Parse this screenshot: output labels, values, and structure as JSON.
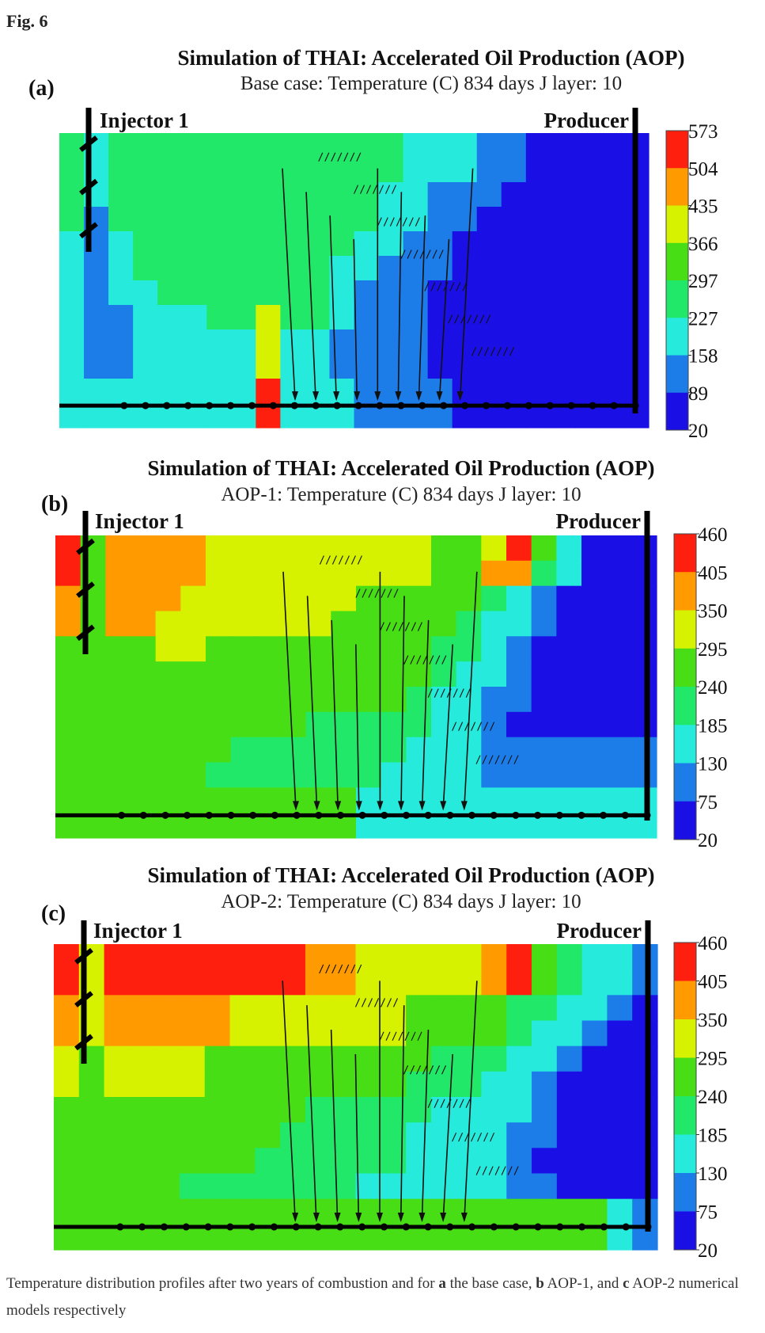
{
  "figure_label": "Fig. 6",
  "caption": {
    "prefix": "Temperature distribution profiles after two years of combustion and for ",
    "a_key": "a",
    "a_text": " the base case, ",
    "b_key": "b",
    "b_text": " AOP-1, and ",
    "c_key": "c",
    "c_text": " AOP-2 numerical models respectively"
  },
  "colors": {
    "scale": [
      "#1a10e6",
      "#1d7de8",
      "#26eadc",
      "#22e86a",
      "#48de16",
      "#d6f200",
      "#ff9a00",
      "#ff1f0e"
    ],
    "well": "#000000"
  },
  "chart_data": [
    {
      "type": "heatmap",
      "panel": "(a)",
      "title": "Simulation of THAI: Accelerated Oil Production (AOP)",
      "subtitle_lead": "Base case:",
      "subtitle_rest": "Temperature (C)    834 days    J layer: 10",
      "injector_label": "Injector 1",
      "producer_label": "Producer",
      "colorbar_ticks": [
        573,
        504,
        435,
        366,
        297,
        227,
        158,
        89,
        20
      ],
      "grid": {
        "cols": 24,
        "rows": 12,
        "cells": [
          [
            3,
            2,
            3,
            3,
            3,
            3,
            3,
            3,
            3,
            3,
            3,
            3,
            3,
            3,
            2,
            2,
            2,
            1,
            1,
            0,
            0,
            0,
            0,
            0
          ],
          [
            3,
            2,
            3,
            3,
            3,
            3,
            3,
            3,
            3,
            3,
            3,
            3,
            3,
            3,
            2,
            2,
            2,
            1,
            1,
            0,
            0,
            0,
            0,
            0
          ],
          [
            3,
            2,
            3,
            3,
            3,
            3,
            3,
            3,
            3,
            3,
            3,
            3,
            3,
            2,
            2,
            1,
            1,
            1,
            0,
            0,
            0,
            0,
            0,
            0
          ],
          [
            3,
            1,
            3,
            3,
            3,
            3,
            3,
            3,
            3,
            3,
            3,
            3,
            3,
            2,
            2,
            1,
            1,
            0,
            0,
            0,
            0,
            0,
            0,
            0
          ],
          [
            2,
            1,
            2,
            3,
            3,
            3,
            3,
            3,
            3,
            3,
            3,
            3,
            2,
            2,
            1,
            1,
            0,
            0,
            0,
            0,
            0,
            0,
            0,
            0
          ],
          [
            2,
            1,
            2,
            3,
            3,
            3,
            3,
            3,
            3,
            3,
            3,
            2,
            2,
            1,
            1,
            1,
            0,
            0,
            0,
            0,
            0,
            0,
            0,
            0
          ],
          [
            2,
            1,
            2,
            2,
            3,
            3,
            3,
            3,
            3,
            3,
            3,
            2,
            1,
            1,
            1,
            0,
            0,
            0,
            0,
            0,
            0,
            0,
            0,
            0
          ],
          [
            2,
            1,
            1,
            2,
            2,
            2,
            3,
            3,
            5,
            3,
            3,
            2,
            1,
            1,
            1,
            0,
            0,
            0,
            0,
            0,
            0,
            0,
            0,
            0
          ],
          [
            2,
            1,
            1,
            2,
            2,
            2,
            2,
            2,
            5,
            2,
            2,
            1,
            1,
            1,
            1,
            0,
            0,
            0,
            0,
            0,
            0,
            0,
            0,
            0
          ],
          [
            2,
            1,
            1,
            2,
            2,
            2,
            2,
            2,
            5,
            2,
            2,
            1,
            1,
            1,
            1,
            0,
            0,
            0,
            0,
            0,
            0,
            0,
            0,
            0
          ],
          [
            2,
            2,
            2,
            2,
            2,
            2,
            2,
            2,
            7,
            2,
            2,
            2,
            1,
            1,
            1,
            1,
            0,
            0,
            0,
            0,
            0,
            0,
            0,
            0
          ],
          [
            2,
            2,
            2,
            2,
            2,
            2,
            2,
            2,
            7,
            2,
            2,
            2,
            1,
            1,
            1,
            1,
            0,
            0,
            0,
            0,
            0,
            0,
            0,
            0
          ]
        ]
      }
    },
    {
      "type": "heatmap",
      "panel": "(b)",
      "title": "Simulation of THAI: Accelerated Oil Production (AOP)",
      "subtitle_lead": "AOP-1:",
      "subtitle_rest": "Temperature (C)    834 days    J layer: 10",
      "injector_label": "Injector 1",
      "producer_label": "Producer",
      "colorbar_ticks": [
        460,
        405,
        350,
        295,
        240,
        185,
        130,
        75,
        20
      ],
      "grid": {
        "cols": 24,
        "rows": 12,
        "cells": [
          [
            7,
            4,
            6,
            6,
            6,
            6,
            5,
            5,
            5,
            5,
            5,
            5,
            5,
            5,
            5,
            4,
            4,
            5,
            7,
            4,
            2,
            0,
            0,
            0
          ],
          [
            7,
            4,
            6,
            6,
            6,
            6,
            5,
            5,
            5,
            5,
            5,
            5,
            5,
            5,
            5,
            4,
            4,
            6,
            6,
            3,
            2,
            0,
            0,
            0
          ],
          [
            6,
            4,
            6,
            6,
            6,
            5,
            5,
            5,
            5,
            5,
            5,
            5,
            4,
            4,
            4,
            4,
            4,
            3,
            2,
            1,
            0,
            0,
            0,
            0
          ],
          [
            6,
            4,
            6,
            6,
            5,
            5,
            5,
            5,
            5,
            5,
            5,
            4,
            4,
            4,
            4,
            4,
            3,
            2,
            2,
            1,
            0,
            0,
            0,
            0
          ],
          [
            4,
            4,
            4,
            4,
            5,
            5,
            4,
            4,
            4,
            4,
            4,
            4,
            4,
            4,
            4,
            3,
            3,
            2,
            1,
            0,
            0,
            0,
            0,
            0
          ],
          [
            4,
            4,
            4,
            4,
            4,
            4,
            4,
            4,
            4,
            4,
            4,
            4,
            4,
            4,
            4,
            3,
            2,
            2,
            1,
            0,
            0,
            0,
            0,
            0
          ],
          [
            4,
            4,
            4,
            4,
            4,
            4,
            4,
            4,
            4,
            4,
            4,
            4,
            4,
            4,
            3,
            2,
            2,
            1,
            1,
            0,
            0,
            0,
            0,
            0
          ],
          [
            4,
            4,
            4,
            4,
            4,
            4,
            4,
            4,
            4,
            4,
            3,
            3,
            3,
            3,
            3,
            2,
            2,
            1,
            0,
            0,
            0,
            0,
            0,
            0
          ],
          [
            4,
            4,
            4,
            4,
            4,
            4,
            4,
            3,
            3,
            3,
            3,
            3,
            3,
            3,
            2,
            2,
            2,
            1,
            1,
            1,
            1,
            1,
            1,
            1
          ],
          [
            4,
            4,
            4,
            4,
            4,
            4,
            3,
            3,
            3,
            3,
            3,
            3,
            3,
            2,
            2,
            2,
            2,
            1,
            1,
            1,
            1,
            1,
            1,
            1
          ],
          [
            4,
            4,
            4,
            4,
            4,
            4,
            4,
            4,
            4,
            4,
            4,
            4,
            2,
            2,
            2,
            2,
            2,
            2,
            2,
            2,
            2,
            2,
            2,
            2
          ],
          [
            4,
            4,
            4,
            4,
            4,
            4,
            4,
            4,
            4,
            4,
            4,
            4,
            2,
            2,
            2,
            2,
            2,
            2,
            2,
            2,
            2,
            2,
            2,
            2
          ]
        ]
      }
    },
    {
      "type": "heatmap",
      "panel": "(c)",
      "title": "Simulation of THAI: Accelerated Oil Production (AOP)",
      "subtitle_lead": "AOP-2:",
      "subtitle_rest": "Temperature (C)    834 days    J layer: 10",
      "injector_label": "Injector 1",
      "producer_label": "Producer",
      "colorbar_ticks": [
        460,
        405,
        350,
        295,
        240,
        185,
        130,
        75,
        20
      ],
      "grid": {
        "cols": 24,
        "rows": 12,
        "cells": [
          [
            7,
            5,
            7,
            7,
            7,
            7,
            7,
            7,
            7,
            7,
            6,
            6,
            5,
            5,
            5,
            5,
            5,
            6,
            7,
            4,
            3,
            2,
            2,
            1
          ],
          [
            7,
            5,
            7,
            7,
            7,
            7,
            7,
            7,
            7,
            7,
            6,
            6,
            5,
            5,
            5,
            5,
            5,
            6,
            7,
            4,
            3,
            2,
            2,
            1
          ],
          [
            6,
            5,
            6,
            6,
            6,
            6,
            6,
            5,
            5,
            5,
            5,
            5,
            5,
            5,
            4,
            4,
            4,
            4,
            3,
            3,
            2,
            2,
            1,
            0
          ],
          [
            6,
            5,
            6,
            6,
            6,
            6,
            6,
            5,
            5,
            5,
            5,
            5,
            5,
            5,
            4,
            4,
            4,
            4,
            3,
            2,
            2,
            1,
            0,
            0
          ],
          [
            5,
            4,
            5,
            5,
            5,
            5,
            4,
            4,
            4,
            4,
            4,
            4,
            4,
            4,
            4,
            3,
            3,
            3,
            2,
            2,
            1,
            0,
            0,
            0
          ],
          [
            5,
            4,
            5,
            5,
            5,
            5,
            4,
            4,
            4,
            4,
            4,
            4,
            4,
            4,
            3,
            3,
            3,
            2,
            2,
            1,
            0,
            0,
            0,
            0
          ],
          [
            4,
            4,
            4,
            4,
            4,
            4,
            4,
            4,
            4,
            4,
            3,
            3,
            3,
            3,
            3,
            2,
            2,
            2,
            2,
            1,
            0,
            0,
            0,
            0
          ],
          [
            4,
            4,
            4,
            4,
            4,
            4,
            4,
            4,
            4,
            3,
            3,
            3,
            3,
            3,
            2,
            2,
            2,
            2,
            1,
            1,
            0,
            0,
            0,
            0
          ],
          [
            4,
            4,
            4,
            4,
            4,
            4,
            4,
            4,
            3,
            3,
            3,
            3,
            3,
            3,
            2,
            2,
            2,
            2,
            1,
            0,
            0,
            0,
            0,
            0
          ],
          [
            4,
            4,
            4,
            4,
            4,
            3,
            3,
            3,
            3,
            3,
            3,
            3,
            2,
            2,
            2,
            2,
            2,
            2,
            1,
            1,
            0,
            0,
            0,
            0
          ],
          [
            4,
            4,
            4,
            4,
            4,
            4,
            4,
            4,
            4,
            4,
            4,
            4,
            4,
            4,
            4,
            4,
            4,
            4,
            4,
            4,
            4,
            4,
            2,
            1
          ],
          [
            4,
            4,
            4,
            4,
            4,
            4,
            4,
            4,
            4,
            4,
            4,
            4,
            4,
            4,
            4,
            4,
            4,
            4,
            4,
            4,
            4,
            4,
            2,
            1
          ]
        ]
      }
    }
  ]
}
